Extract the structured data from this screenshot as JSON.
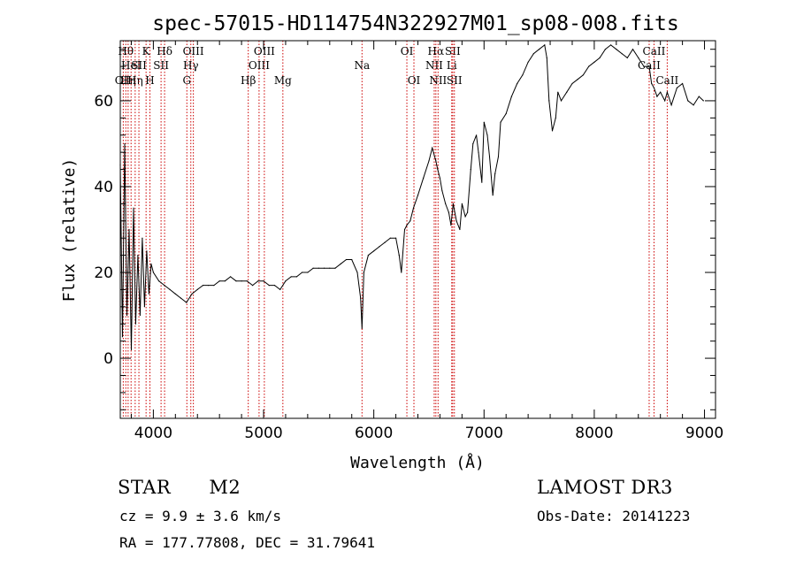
{
  "chart_data": {
    "type": "line",
    "title": "spec-57015-HD114754N322927M01_sp08-008.fits",
    "xlabel": "Wavelength (Å)",
    "ylabel": "Flux (relative)",
    "xlim": [
      3700,
      9100
    ],
    "ylim": [
      -14,
      74
    ],
    "x_ticks": [
      4000,
      5000,
      6000,
      7000,
      8000,
      9000
    ],
    "y_ticks": [
      0,
      20,
      40,
      60
    ],
    "series": [
      {
        "x": [
          3700,
          3720,
          3740,
          3760,
          3780,
          3800,
          3820,
          3840,
          3860,
          3880,
          3900,
          3920,
          3940,
          3960,
          3980,
          4000,
          4050,
          4100,
          4150,
          4200,
          4250,
          4300,
          4350,
          4400,
          4450,
          4500,
          4550,
          4600,
          4650,
          4700,
          4750,
          4800,
          4850,
          4900,
          4950,
          5000,
          5050,
          5100,
          5150,
          5200,
          5250,
          5300,
          5350,
          5400,
          5450,
          5500,
          5550,
          5600,
          5650,
          5700,
          5750,
          5800,
          5850,
          5880,
          5893,
          5910,
          5950,
          6000,
          6050,
          6100,
          6150,
          6200,
          6230,
          6250,
          6280,
          6300,
          6330,
          6360,
          6400,
          6450,
          6500,
          6530,
          6563,
          6580,
          6600,
          6620,
          6650,
          6680,
          6700,
          6720,
          6750,
          6780,
          6800,
          6830,
          6850,
          6880,
          6900,
          6930,
          6950,
          6980,
          7000,
          7030,
          7050,
          7080,
          7100,
          7130,
          7150,
          7200,
          7250,
          7300,
          7350,
          7400,
          7450,
          7500,
          7550,
          7570,
          7590,
          7620,
          7650,
          7670,
          7700,
          7750,
          7800,
          7850,
          7900,
          7950,
          8000,
          8050,
          8100,
          8150,
          8200,
          8250,
          8300,
          8350,
          8400,
          8450,
          8498,
          8520,
          8542,
          8570,
          8600,
          8640,
          8662,
          8700,
          8750,
          8800,
          8850,
          8900,
          8950,
          8990
        ],
        "y": [
          45,
          5,
          50,
          10,
          30,
          2,
          35,
          8,
          24,
          10,
          28,
          12,
          25,
          15,
          22,
          20,
          18,
          17,
          16,
          15,
          14,
          13,
          15,
          16,
          17,
          17,
          17,
          18,
          18,
          19,
          18,
          18,
          18,
          17,
          18,
          18,
          17,
          17,
          16,
          18,
          19,
          19,
          20,
          20,
          21,
          21,
          21,
          21,
          21,
          22,
          23,
          23,
          20,
          14,
          7,
          20,
          24,
          25,
          26,
          27,
          28,
          28,
          24,
          20,
          30,
          31,
          32,
          35,
          38,
          42,
          46,
          49,
          46,
          44,
          42,
          39,
          36,
          34,
          31,
          36,
          32,
          30,
          36,
          33,
          34,
          44,
          50,
          52,
          48,
          41,
          55,
          52,
          47,
          38,
          43,
          47,
          55,
          57,
          61,
          64,
          66,
          69,
          71,
          72,
          73,
          70,
          60,
          53,
          56,
          62,
          60,
          62,
          64,
          65,
          66,
          68,
          69,
          70,
          72,
          73,
          72,
          71,
          70,
          72,
          70,
          68,
          68,
          64,
          63,
          61,
          62,
          60,
          62,
          59,
          63,
          64,
          60,
          59,
          61,
          60
        ]
      }
    ],
    "line_markers": [
      {
        "wl": 3727,
        "label": "OII",
        "row": 3
      },
      {
        "wl": 3750,
        "label": "Hθ",
        "row": 1
      },
      {
        "wl": 3771,
        "label": "Hη",
        "row": 3
      },
      {
        "wl": 3798,
        "label": "HeI",
        "row": 2
      },
      {
        "wl": 3835,
        "label": "Hη",
        "row": 3
      },
      {
        "wl": 3869,
        "label": "SII",
        "row": 2
      },
      {
        "wl": 3934,
        "label": "K",
        "row": 1
      },
      {
        "wl": 3969,
        "label": "H",
        "row": 3
      },
      {
        "wl": 4102,
        "label": "Hδ",
        "row": 1
      },
      {
        "wl": 4070,
        "label": "SII",
        "row": 2
      },
      {
        "wl": 4304,
        "label": "G",
        "row": 3
      },
      {
        "wl": 4340,
        "label": "Hγ",
        "row": 2
      },
      {
        "wl": 4363,
        "label": "OIII",
        "row": 1
      },
      {
        "wl": 4861,
        "label": "Hβ",
        "row": 3
      },
      {
        "wl": 4959,
        "label": "OIII",
        "row": 2
      },
      {
        "wl": 5007,
        "label": "OIII",
        "row": 1
      },
      {
        "wl": 5175,
        "label": "Mg",
        "row": 3
      },
      {
        "wl": 5893,
        "label": "Na",
        "row": 2
      },
      {
        "wl": 6300,
        "label": "OI",
        "row": 1
      },
      {
        "wl": 6364,
        "label": "OI",
        "row": 3
      },
      {
        "wl": 6548,
        "label": "NII",
        "row": 2
      },
      {
        "wl": 6563,
        "label": "Hα",
        "row": 1
      },
      {
        "wl": 6583,
        "label": "NII",
        "row": 3
      },
      {
        "wl": 6707,
        "label": "Li",
        "row": 2
      },
      {
        "wl": 6716,
        "label": "SII",
        "row": 1
      },
      {
        "wl": 6731,
        "label": "SII",
        "row": 3
      },
      {
        "wl": 8498,
        "label": "CaII",
        "row": 2
      },
      {
        "wl": 8542,
        "label": "CaII",
        "row": 1
      },
      {
        "wl": 8662,
        "label": "CaII",
        "row": 3
      }
    ]
  },
  "info": {
    "class_label": "STAR",
    "subclass_label": "M2",
    "survey": "LAMOST DR3",
    "cz": "cz = 9.9 ± 3.6 km/s",
    "obs_date": "Obs-Date: 20141223",
    "radec": "RA = 177.77808, DEC =  31.79641"
  }
}
